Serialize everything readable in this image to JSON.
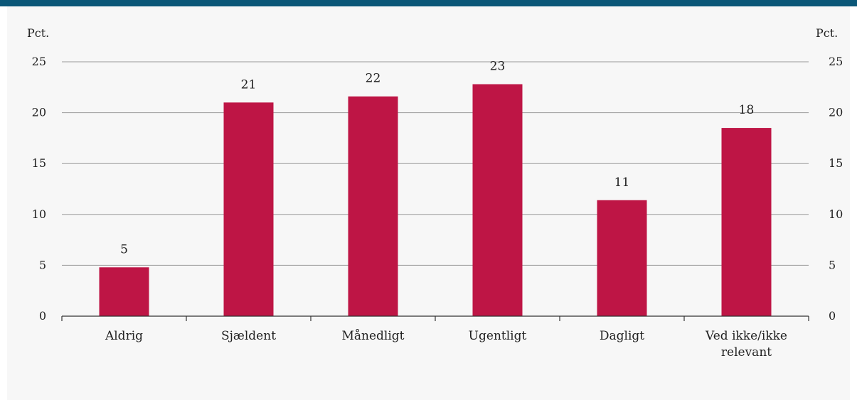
{
  "chart_data": {
    "type": "bar",
    "y_unit_left": "Pct.",
    "y_unit_right": "Pct.",
    "categories": [
      "Aldrig",
      "Sjældent",
      "Månedligt",
      "Ugentligt",
      "Dagligt",
      "Ved ikke/ikke relevant"
    ],
    "values": [
      4.8,
      21.0,
      21.6,
      22.8,
      11.4,
      18.5
    ],
    "data_labels": [
      "5",
      "21",
      "22",
      "23",
      "11",
      "18"
    ],
    "ylim": [
      0,
      25
    ],
    "yticks": [
      0,
      5,
      10,
      15,
      20,
      25
    ],
    "grid": true,
    "bar_color": "#be1545",
    "frame_color": "#0b5778"
  }
}
